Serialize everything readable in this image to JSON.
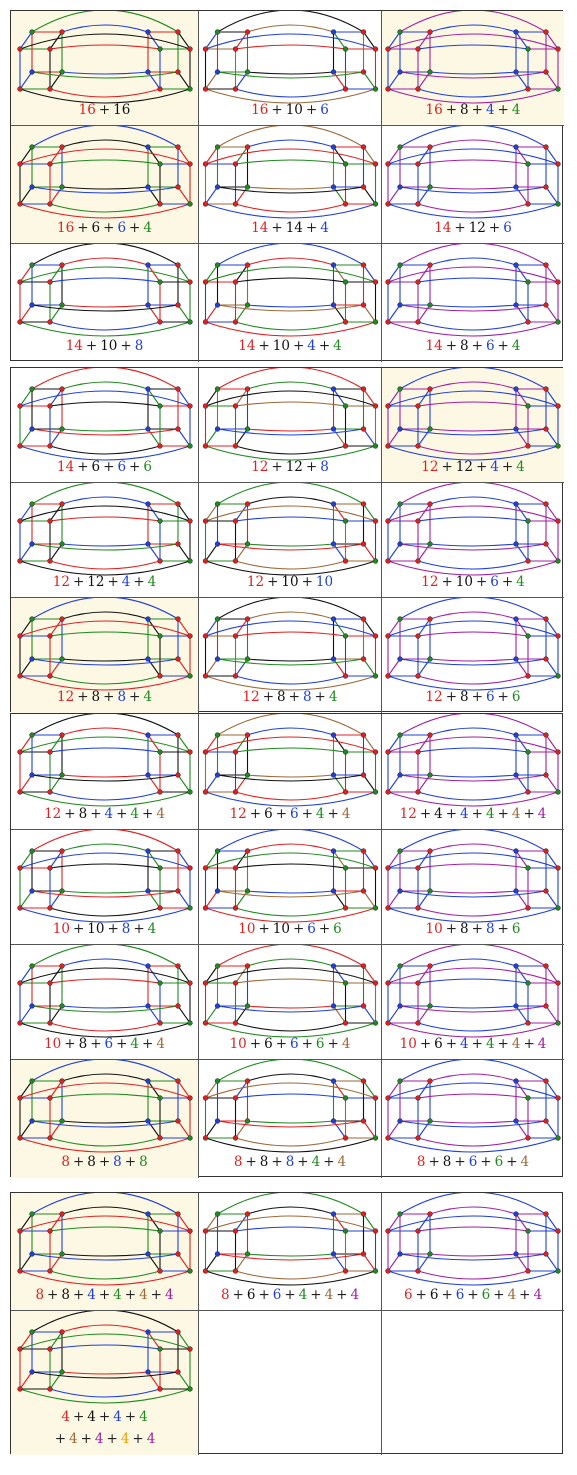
{
  "colors": {
    "red": "#e02020",
    "black": "#111111",
    "blue": "#1f3fd8",
    "green": "#1f8a1f",
    "brown": "#9a6a3a",
    "purple": "#a020a0",
    "orange": "#f0a000"
  },
  "blocks": [
    {
      "cells": [
        {
          "hl": true,
          "caption": [
            [
              "16",
              "red"
            ],
            [
              "16",
              "black"
            ]
          ]
        },
        {
          "hl": false,
          "caption": [
            [
              "16",
              "red"
            ],
            [
              "10",
              "black"
            ],
            [
              "6",
              "blue"
            ]
          ]
        },
        {
          "hl": true,
          "caption": [
            [
              "16",
              "red"
            ],
            [
              "8",
              "black"
            ],
            [
              "4",
              "blue"
            ],
            [
              "4",
              "green"
            ]
          ]
        },
        {
          "hl": true,
          "caption": [
            [
              "16",
              "red"
            ],
            [
              "6",
              "black"
            ],
            [
              "6",
              "blue"
            ],
            [
              "4",
              "green"
            ]
          ]
        },
        {
          "hl": false,
          "caption": [
            [
              "14",
              "red"
            ],
            [
              "14",
              "black"
            ],
            [
              "4",
              "blue"
            ]
          ]
        },
        {
          "hl": false,
          "caption": [
            [
              "14",
              "red"
            ],
            [
              "12",
              "black"
            ],
            [
              "6",
              "blue"
            ]
          ]
        },
        {
          "hl": false,
          "caption": [
            [
              "14",
              "red"
            ],
            [
              "10",
              "black"
            ],
            [
              "8",
              "blue"
            ]
          ]
        },
        {
          "hl": false,
          "caption": [
            [
              "14",
              "red"
            ],
            [
              "10",
              "black"
            ],
            [
              "4",
              "blue"
            ],
            [
              "4",
              "green"
            ]
          ]
        },
        {
          "hl": false,
          "caption": [
            [
              "14",
              "red"
            ],
            [
              "8",
              "black"
            ],
            [
              "6",
              "blue"
            ],
            [
              "4",
              "green"
            ]
          ]
        }
      ]
    },
    {
      "cells": [
        {
          "hl": false,
          "caption": [
            [
              "14",
              "red"
            ],
            [
              "6",
              "black"
            ],
            [
              "6",
              "blue"
            ],
            [
              "6",
              "green"
            ]
          ]
        },
        {
          "hl": false,
          "caption": [
            [
              "12",
              "red"
            ],
            [
              "12",
              "black"
            ],
            [
              "8",
              "blue"
            ]
          ]
        },
        {
          "hl": true,
          "caption": [
            [
              "12",
              "red"
            ],
            [
              "12",
              "black"
            ],
            [
              "4",
              "blue"
            ],
            [
              "4",
              "green"
            ]
          ]
        },
        {
          "hl": false,
          "caption": [
            [
              "12",
              "red"
            ],
            [
              "12",
              "black"
            ],
            [
              "4",
              "blue"
            ],
            [
              "4",
              "green"
            ]
          ]
        },
        {
          "hl": false,
          "caption": [
            [
              "12",
              "red"
            ],
            [
              "10",
              "black"
            ],
            [
              "10",
              "blue"
            ]
          ]
        },
        {
          "hl": false,
          "caption": [
            [
              "12",
              "red"
            ],
            [
              "10",
              "black"
            ],
            [
              "6",
              "blue"
            ],
            [
              "4",
              "green"
            ]
          ]
        },
        {
          "hl": true,
          "caption": [
            [
              "12",
              "red"
            ],
            [
              "8",
              "black"
            ],
            [
              "8",
              "blue"
            ],
            [
              "4",
              "green"
            ]
          ]
        },
        {
          "hl": false,
          "caption": [
            [
              "12",
              "red"
            ],
            [
              "8",
              "black"
            ],
            [
              "8",
              "blue"
            ],
            [
              "4",
              "green"
            ]
          ]
        },
        {
          "hl": false,
          "caption": [
            [
              "12",
              "red"
            ],
            [
              "8",
              "black"
            ],
            [
              "6",
              "blue"
            ],
            [
              "6",
              "green"
            ]
          ]
        }
      ]
    },
    {
      "cells": [
        {
          "hl": false,
          "caption": [
            [
              "12",
              "red"
            ],
            [
              "8",
              "black"
            ],
            [
              "4",
              "blue"
            ],
            [
              "4",
              "green"
            ],
            [
              "4",
              "brown"
            ]
          ]
        },
        {
          "hl": false,
          "caption": [
            [
              "12",
              "red"
            ],
            [
              "6",
              "black"
            ],
            [
              "6",
              "blue"
            ],
            [
              "4",
              "green"
            ],
            [
              "4",
              "brown"
            ]
          ]
        },
        {
          "hl": false,
          "caption": [
            [
              "12",
              "red"
            ],
            [
              "4",
              "black"
            ],
            [
              "4",
              "blue"
            ],
            [
              "4",
              "green"
            ],
            [
              "4",
              "brown"
            ],
            [
              "4",
              "purple"
            ]
          ]
        },
        {
          "hl": false,
          "caption": [
            [
              "10",
              "red"
            ],
            [
              "10",
              "black"
            ],
            [
              "8",
              "blue"
            ],
            [
              "4",
              "green"
            ]
          ]
        },
        {
          "hl": false,
          "caption": [
            [
              "10",
              "red"
            ],
            [
              "10",
              "black"
            ],
            [
              "6",
              "blue"
            ],
            [
              "6",
              "green"
            ]
          ]
        },
        {
          "hl": false,
          "caption": [
            [
              "10",
              "red"
            ],
            [
              "8",
              "black"
            ],
            [
              "8",
              "blue"
            ],
            [
              "6",
              "green"
            ]
          ]
        },
        {
          "hl": false,
          "caption": [
            [
              "10",
              "red"
            ],
            [
              "8",
              "black"
            ],
            [
              "6",
              "blue"
            ],
            [
              "4",
              "green"
            ],
            [
              "4",
              "brown"
            ]
          ]
        },
        {
          "hl": false,
          "caption": [
            [
              "10",
              "red"
            ],
            [
              "6",
              "black"
            ],
            [
              "6",
              "blue"
            ],
            [
              "6",
              "green"
            ],
            [
              "4",
              "brown"
            ]
          ]
        },
        {
          "hl": false,
          "caption": [
            [
              "10",
              "red"
            ],
            [
              "6",
              "black"
            ],
            [
              "4",
              "blue"
            ],
            [
              "4",
              "green"
            ],
            [
              "4",
              "brown"
            ],
            [
              "4",
              "purple"
            ]
          ]
        },
        {
          "hl": true,
          "caption": [
            [
              "8",
              "red"
            ],
            [
              "8",
              "black"
            ],
            [
              "8",
              "blue"
            ],
            [
              "8",
              "green"
            ]
          ]
        },
        {
          "hl": false,
          "caption": [
            [
              "8",
              "red"
            ],
            [
              "8",
              "black"
            ],
            [
              "8",
              "blue"
            ],
            [
              "4",
              "green"
            ],
            [
              "4",
              "brown"
            ]
          ]
        },
        {
          "hl": false,
          "caption": [
            [
              "8",
              "red"
            ],
            [
              "8",
              "black"
            ],
            [
              "6",
              "blue"
            ],
            [
              "6",
              "green"
            ],
            [
              "4",
              "brown"
            ]
          ]
        }
      ]
    },
    {
      "cells": [
        {
          "hl": true,
          "caption": [
            [
              "8",
              "red"
            ],
            [
              "8",
              "black"
            ],
            [
              "4",
              "blue"
            ],
            [
              "4",
              "green"
            ],
            [
              "4",
              "brown"
            ],
            [
              "4",
              "purple"
            ]
          ]
        },
        {
          "hl": false,
          "caption": [
            [
              "8",
              "red"
            ],
            [
              "6",
              "black"
            ],
            [
              "6",
              "blue"
            ],
            [
              "4",
              "green"
            ],
            [
              "4",
              "brown"
            ],
            [
              "4",
              "purple"
            ]
          ]
        },
        {
          "hl": false,
          "caption": [
            [
              "6",
              "red"
            ],
            [
              "6",
              "black"
            ],
            [
              "6",
              "blue"
            ],
            [
              "6",
              "green"
            ],
            [
              "4",
              "brown"
            ],
            [
              "4",
              "purple"
            ]
          ]
        },
        {
          "hl": true,
          "caption": [
            [
              "4",
              "red"
            ],
            [
              "4",
              "black"
            ],
            [
              "4",
              "blue"
            ],
            [
              "4",
              "green"
            ]
          ],
          "caption2": [
            [
              "4",
              "brown"
            ],
            [
              "4",
              "purple"
            ],
            [
              "4",
              "orange"
            ],
            [
              "4",
              "purple"
            ]
          ]
        },
        {
          "hl": false,
          "caption": []
        },
        {
          "hl": false,
          "caption": []
        }
      ]
    }
  ]
}
